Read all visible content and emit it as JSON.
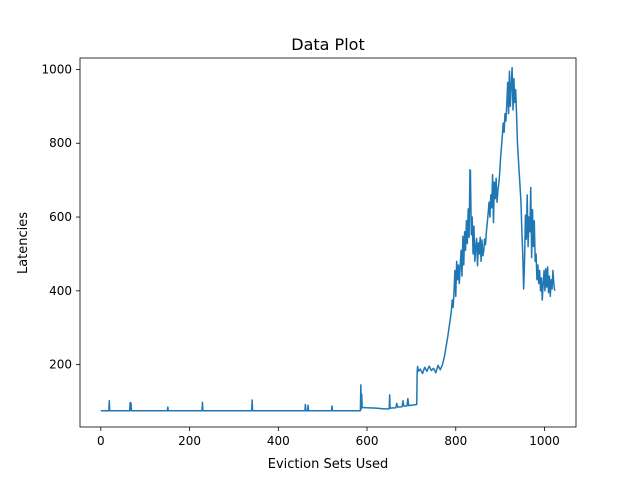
{
  "chart_data": {
    "type": "line",
    "title": "Data Plot",
    "xlabel": "Eviction Sets Used",
    "ylabel": "Latencies",
    "xlim": [
      -47,
      1071
    ],
    "ylim": [
      31,
      1031
    ],
    "xticks": [
      0,
      200,
      400,
      600,
      800,
      1000
    ],
    "yticks": [
      200,
      400,
      600,
      800,
      1000
    ],
    "grid": false,
    "series_color": "#1f77b4",
    "series": [
      {
        "points": [
          [
            0,
            75
          ],
          [
            18,
            75
          ],
          [
            19,
            102
          ],
          [
            20,
            75
          ],
          [
            65,
            75
          ],
          [
            66,
            97
          ],
          [
            67,
            75
          ],
          [
            68,
            96
          ],
          [
            69,
            75
          ],
          [
            150,
            75
          ],
          [
            151,
            85
          ],
          [
            152,
            75
          ],
          [
            228,
            75
          ],
          [
            229,
            98
          ],
          [
            230,
            75
          ],
          [
            340,
            75
          ],
          [
            341,
            104
          ],
          [
            342,
            75
          ],
          [
            460,
            75
          ],
          [
            461,
            92
          ],
          [
            462,
            75
          ],
          [
            466,
            75
          ],
          [
            467,
            90
          ],
          [
            468,
            75
          ],
          [
            520,
            75
          ],
          [
            521,
            88
          ],
          [
            522,
            75
          ],
          [
            585,
            75
          ],
          [
            586,
            145
          ],
          [
            587,
            80
          ],
          [
            588,
            120
          ],
          [
            589,
            84
          ],
          [
            600,
            83
          ],
          [
            620,
            82
          ],
          [
            640,
            80
          ],
          [
            650,
            80
          ],
          [
            651,
            118
          ],
          [
            652,
            82
          ],
          [
            665,
            83
          ],
          [
            667,
            95
          ],
          [
            669,
            85
          ],
          [
            679,
            86
          ],
          [
            681,
            102
          ],
          [
            683,
            88
          ],
          [
            690,
            88
          ],
          [
            692,
            108
          ],
          [
            694,
            89
          ],
          [
            700,
            90
          ],
          [
            712,
            92
          ],
          [
            713,
            180
          ],
          [
            714,
            195
          ],
          [
            716,
            182
          ],
          [
            720,
            188
          ],
          [
            725,
            176
          ],
          [
            730,
            193
          ],
          [
            735,
            182
          ],
          [
            740,
            196
          ],
          [
            745,
            184
          ],
          [
            750,
            190
          ],
          [
            755,
            178
          ],
          [
            760,
            198
          ],
          [
            765,
            186
          ],
          [
            770,
            200
          ],
          [
            775,
            225
          ],
          [
            778,
            248
          ],
          [
            780,
            262
          ],
          [
            782,
            276
          ],
          [
            785,
            302
          ],
          [
            787,
            318
          ],
          [
            790,
            345
          ],
          [
            792,
            375
          ],
          [
            794,
            355
          ],
          [
            796,
            395
          ],
          [
            798,
            455
          ],
          [
            800,
            385
          ],
          [
            802,
            480
          ],
          [
            804,
            430
          ],
          [
            806,
            470
          ],
          [
            808,
            420
          ],
          [
            810,
            468
          ],
          [
            812,
            510
          ],
          [
            814,
            440
          ],
          [
            816,
            548
          ],
          [
            818,
            470
          ],
          [
            820,
            560
          ],
          [
            822,
            510
          ],
          [
            824,
            590
          ],
          [
            826,
            528
          ],
          [
            828,
            622
          ],
          [
            830,
            545
          ],
          [
            832,
            728
          ],
          [
            833,
            726
          ],
          [
            835,
            552
          ],
          [
            837,
            600
          ],
          [
            839,
            500
          ],
          [
            841,
            575
          ],
          [
            843,
            480
          ],
          [
            845,
            520
          ],
          [
            847,
            542
          ],
          [
            849,
            468
          ],
          [
            851,
            530
          ],
          [
            853,
            500
          ],
          [
            855,
            545
          ],
          [
            857,
            480
          ],
          [
            859,
            538
          ],
          [
            861,
            495
          ],
          [
            863,
            508
          ],
          [
            865,
            540
          ],
          [
            867,
            525
          ],
          [
            869,
            560
          ],
          [
            871,
            585
          ],
          [
            873,
            610
          ],
          [
            875,
            640
          ],
          [
            877,
            600
          ],
          [
            879,
            660
          ],
          [
            881,
            625
          ],
          [
            883,
            715
          ],
          [
            885,
            585
          ],
          [
            887,
            695
          ],
          [
            889,
            650
          ],
          [
            891,
            705
          ],
          [
            893,
            640
          ],
          [
            895,
            672
          ],
          [
            897,
            690
          ],
          [
            899,
            720
          ],
          [
            901,
            760
          ],
          [
            903,
            790
          ],
          [
            905,
            820
          ],
          [
            907,
            855
          ],
          [
            909,
            830
          ],
          [
            911,
            880
          ],
          [
            913,
            860
          ],
          [
            915,
            905
          ],
          [
            917,
            965
          ],
          [
            919,
            880
          ],
          [
            921,
            995
          ],
          [
            923,
            900
          ],
          [
            925,
            960
          ],
          [
            927,
            1005
          ],
          [
            929,
            890
          ],
          [
            931,
            975
          ],
          [
            933,
            910
          ],
          [
            935,
            945
          ],
          [
            937,
            880
          ],
          [
            939,
            800
          ],
          [
            941,
            760
          ],
          [
            943,
            720
          ],
          [
            945,
            680
          ],
          [
            947,
            640
          ],
          [
            949,
            560
          ],
          [
            951,
            500
          ],
          [
            953,
            405
          ],
          [
            955,
            480
          ],
          [
            957,
            605
          ],
          [
            959,
            540
          ],
          [
            961,
            660
          ],
          [
            963,
            520
          ],
          [
            965,
            600
          ],
          [
            967,
            560
          ],
          [
            969,
            680
          ],
          [
            971,
            490
          ],
          [
            973,
            620
          ],
          [
            975,
            520
          ],
          [
            977,
            590
          ],
          [
            979,
            480
          ],
          [
            981,
            500
          ],
          [
            983,
            430
          ],
          [
            985,
            470
          ],
          [
            987,
            420
          ],
          [
            989,
            455
          ],
          [
            991,
            400
          ],
          [
            993,
            435
          ],
          [
            995,
            375
          ],
          [
            997,
            420
          ],
          [
            999,
            455
          ],
          [
            1001,
            400
          ],
          [
            1003,
            460
          ],
          [
            1005,
            410
          ],
          [
            1007,
            465
          ],
          [
            1009,
            395
          ],
          [
            1011,
            440
          ],
          [
            1013,
            385
          ],
          [
            1015,
            430
          ],
          [
            1017,
            405
          ],
          [
            1019,
            455
          ],
          [
            1021,
            420
          ],
          [
            1023,
            400
          ]
        ]
      }
    ]
  }
}
